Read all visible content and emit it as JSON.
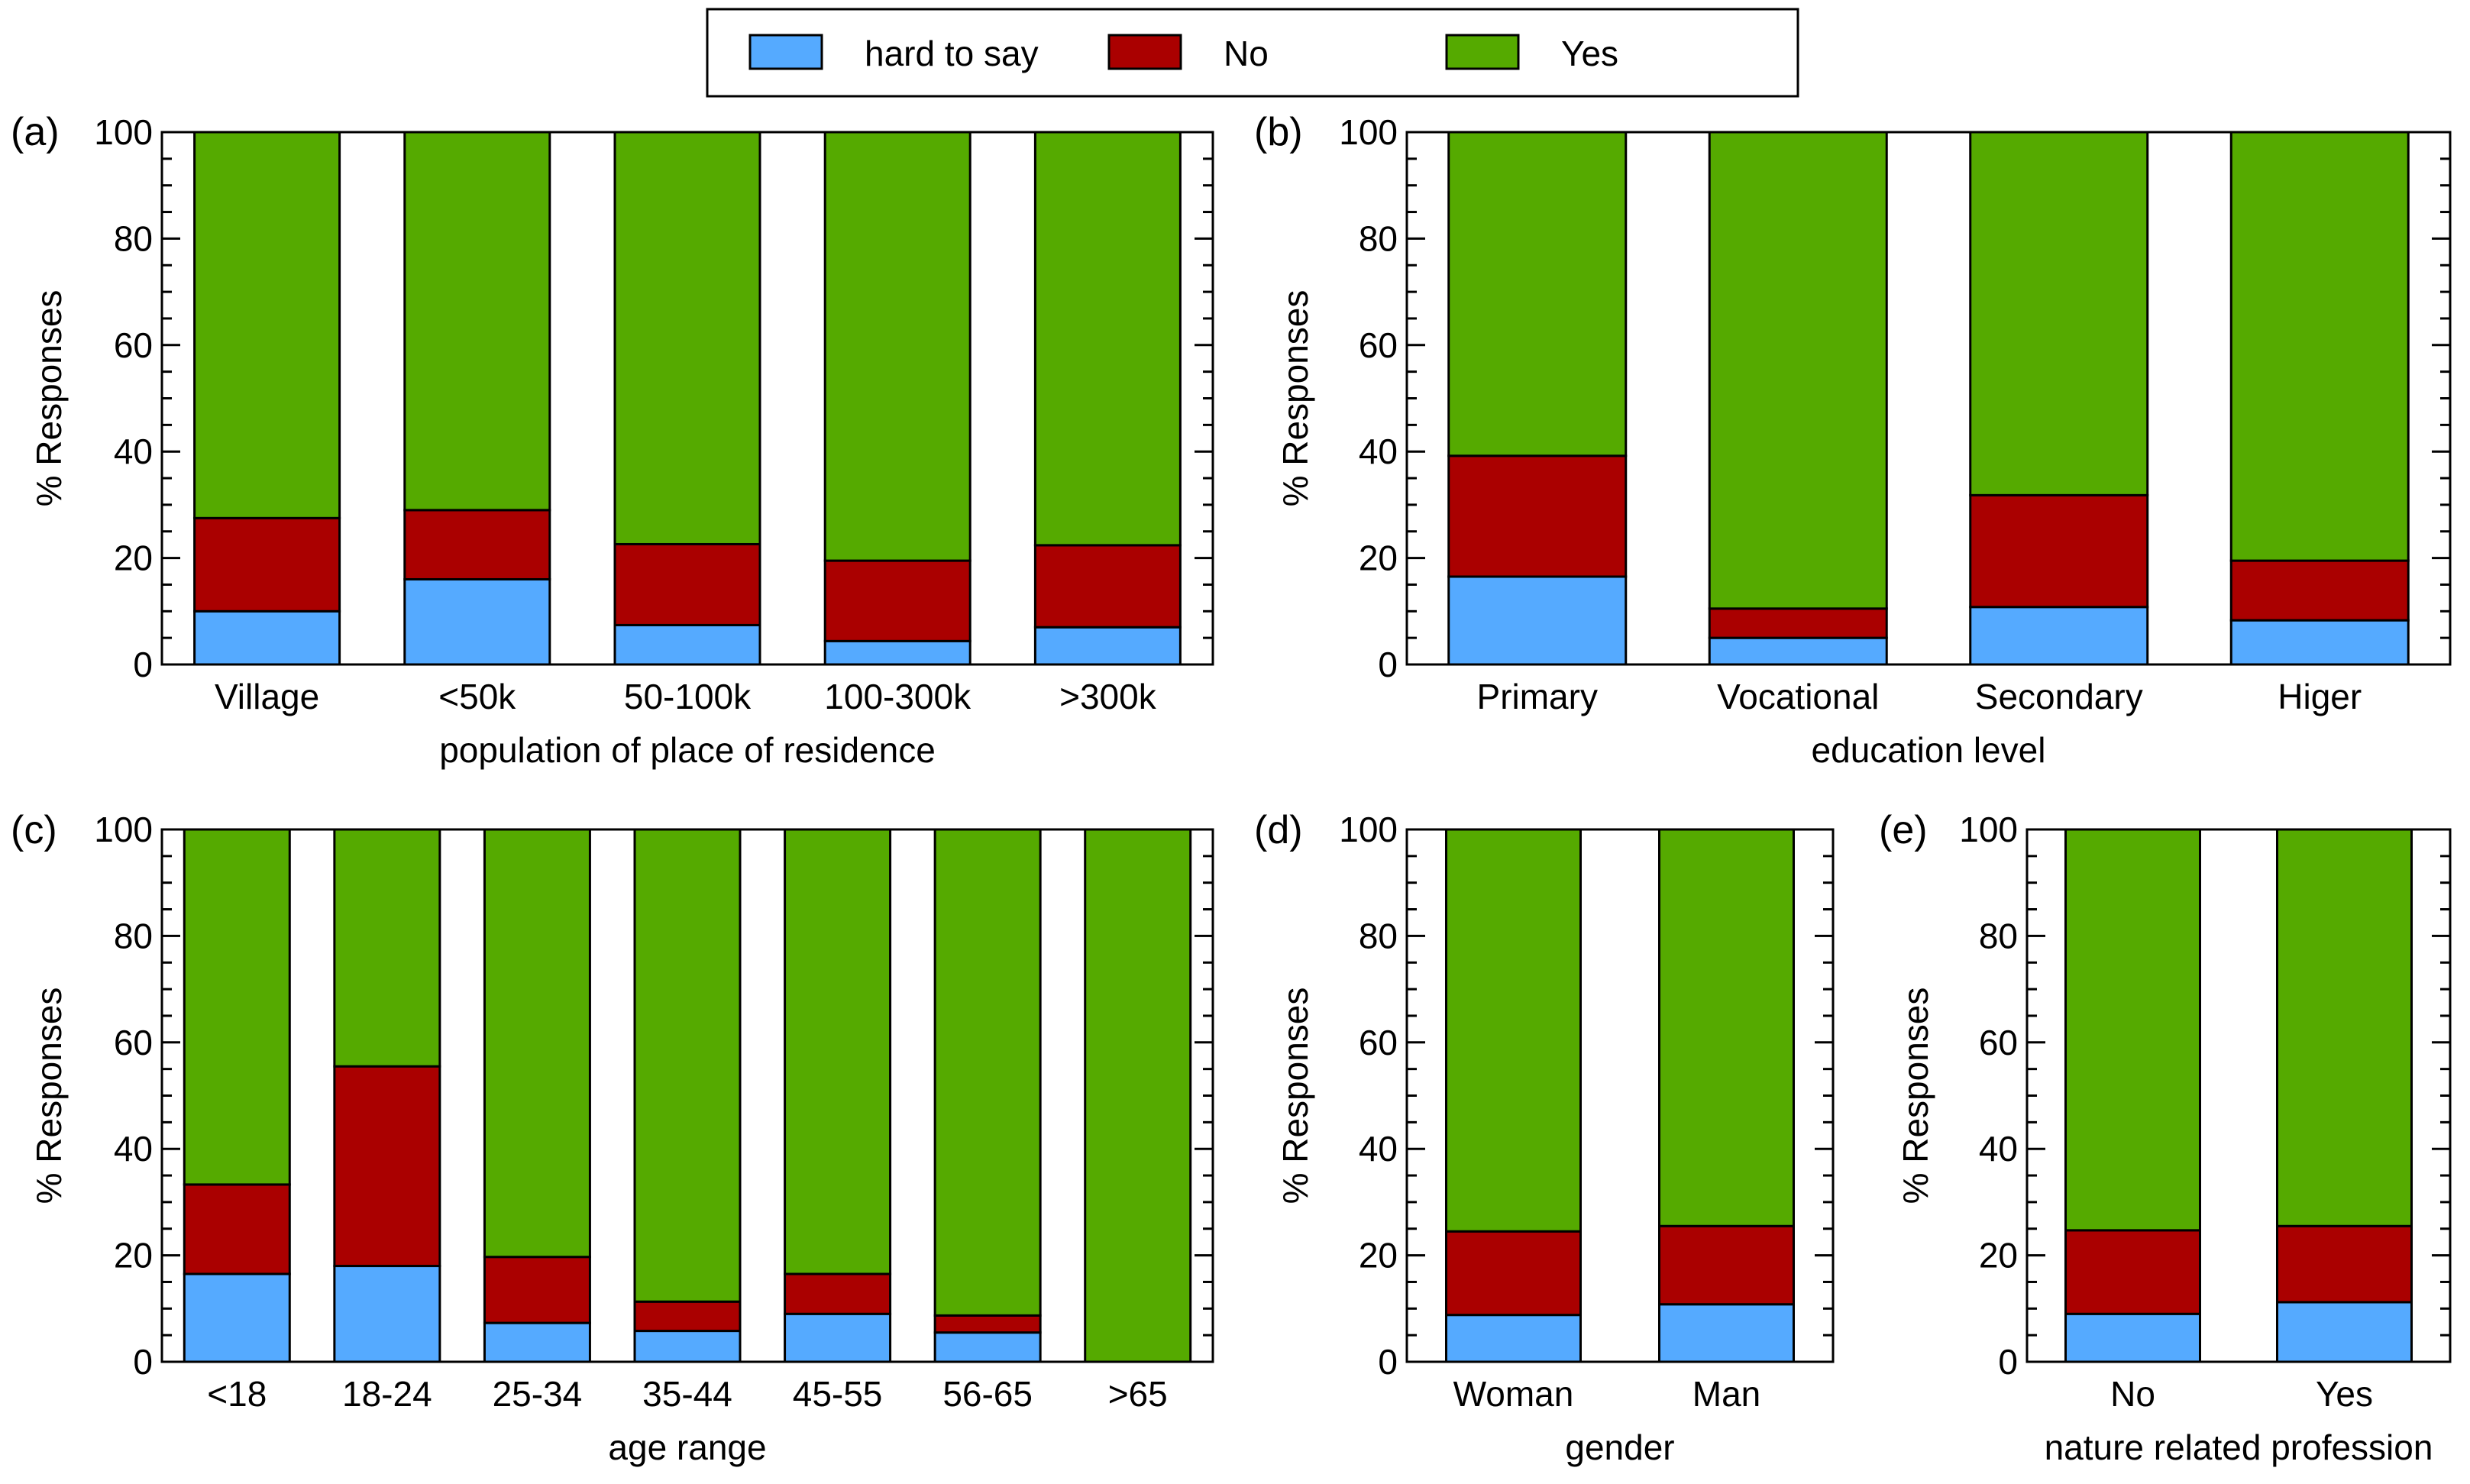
{
  "colors": {
    "hard": "#55aaff",
    "no": "#aa0000",
    "yes": "#55aa00"
  },
  "legend": [
    {
      "key": "hard",
      "label": "hard to say"
    },
    {
      "key": "no",
      "label": "No"
    },
    {
      "key": "yes",
      "label": "Yes"
    }
  ],
  "chart_data": [
    {
      "id": "a",
      "tag": "(a)",
      "type": "bar",
      "stacked": true,
      "xlabel": "population of place of residence",
      "ylabel": "% Responses",
      "ylim": [
        0,
        100
      ],
      "yticks": [
        0,
        20,
        40,
        60,
        80,
        100
      ],
      "categories": [
        "Village",
        "<50k",
        "50-100k",
        "100-300k",
        ">300k"
      ],
      "series": [
        {
          "name": "hard to say",
          "key": "hard",
          "values": [
            10.0,
            16.0,
            7.4,
            4.4,
            7.0
          ]
        },
        {
          "name": "No",
          "key": "no",
          "values": [
            17.5,
            13.0,
            15.2,
            15.1,
            15.4
          ]
        },
        {
          "name": "Yes",
          "key": "yes",
          "values": [
            72.5,
            71.0,
            77.4,
            80.5,
            77.6
          ]
        }
      ]
    },
    {
      "id": "b",
      "tag": "(b)",
      "type": "bar",
      "stacked": true,
      "xlabel": "education level",
      "ylabel": "% Responses",
      "ylim": [
        0,
        100
      ],
      "yticks": [
        0,
        20,
        40,
        60,
        80,
        100
      ],
      "categories": [
        "Primary",
        "Vocational",
        "Secondary",
        "Higer"
      ],
      "series": [
        {
          "name": "hard to say",
          "key": "hard",
          "values": [
            16.5,
            5.0,
            10.8,
            8.3
          ]
        },
        {
          "name": "No",
          "key": "no",
          "values": [
            22.7,
            5.5,
            21.0,
            11.2
          ]
        },
        {
          "name": "Yes",
          "key": "yes",
          "values": [
            60.8,
            89.5,
            68.2,
            80.5
          ]
        }
      ]
    },
    {
      "id": "c",
      "tag": "(c)",
      "type": "bar",
      "stacked": true,
      "xlabel": "age range",
      "ylabel": "% Responses",
      "ylim": [
        0,
        100
      ],
      "yticks": [
        0,
        20,
        40,
        60,
        80,
        100
      ],
      "categories": [
        "<18",
        "18-24",
        "25-34",
        "35-44",
        "45-55",
        "56-65",
        ">65"
      ],
      "series": [
        {
          "name": "hard to say",
          "key": "hard",
          "values": [
            16.5,
            18.0,
            7.3,
            5.8,
            9.0,
            5.5,
            0.0
          ]
        },
        {
          "name": "No",
          "key": "no",
          "values": [
            16.8,
            37.5,
            12.4,
            5.5,
            7.5,
            3.2,
            0.0
          ]
        },
        {
          "name": "Yes",
          "key": "yes",
          "values": [
            66.7,
            44.5,
            80.3,
            88.7,
            83.5,
            91.3,
            100.0
          ]
        }
      ]
    },
    {
      "id": "d",
      "tag": "(d)",
      "type": "bar",
      "stacked": true,
      "xlabel": "gender",
      "ylabel": "% Responses",
      "ylim": [
        0,
        100
      ],
      "yticks": [
        0,
        20,
        40,
        60,
        80,
        100
      ],
      "categories": [
        "Woman",
        "Man"
      ],
      "series": [
        {
          "name": "hard to say",
          "key": "hard",
          "values": [
            8.8,
            10.8
          ]
        },
        {
          "name": "No",
          "key": "no",
          "values": [
            15.7,
            14.7
          ]
        },
        {
          "name": "Yes",
          "key": "yes",
          "values": [
            75.5,
            74.5
          ]
        }
      ]
    },
    {
      "id": "e",
      "tag": "(e)",
      "type": "bar",
      "stacked": true,
      "xlabel": "nature related profession",
      "ylabel": "% Responses",
      "ylim": [
        0,
        100
      ],
      "yticks": [
        0,
        20,
        40,
        60,
        80,
        100
      ],
      "categories": [
        "No",
        "Yes"
      ],
      "series": [
        {
          "name": "hard to say",
          "key": "hard",
          "values": [
            9.0,
            11.2
          ]
        },
        {
          "name": "No",
          "key": "no",
          "values": [
            15.7,
            14.3
          ]
        },
        {
          "name": "Yes",
          "key": "yes",
          "values": [
            75.3,
            74.5
          ]
        }
      ]
    }
  ]
}
